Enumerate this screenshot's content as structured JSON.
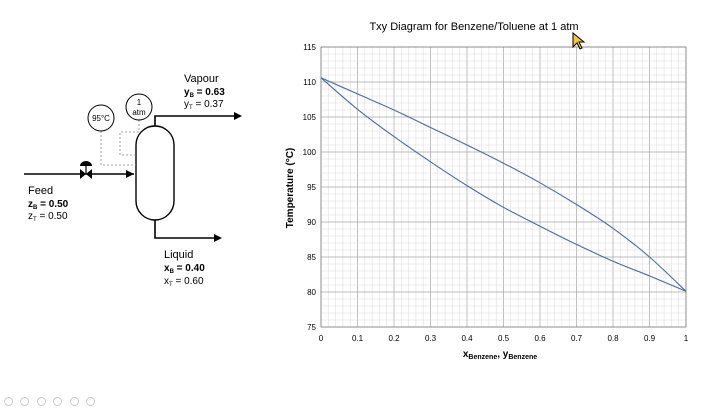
{
  "chart_data": {
    "type": "line",
    "title": "Txy Diagram for Benzene/Toluene at 1 atm",
    "xlabel_main": "x",
    "xlabel_sub1": "Benzene",
    "xlabel_sep": ", y",
    "xlabel_sub2": "Benzene",
    "ylabel": "Temperature (°C)",
    "xlim": [
      0,
      1
    ],
    "ylim": [
      75,
      115
    ],
    "x_ticks": [
      "0",
      "0.1",
      "0.2",
      "0.3",
      "0.4",
      "0.5",
      "0.6",
      "0.7",
      "0.8",
      "0.9",
      "1"
    ],
    "y_ticks": [
      "75",
      "80",
      "85",
      "90",
      "95",
      "100",
      "105",
      "110",
      "115"
    ],
    "grid": true,
    "series": [
      {
        "role": "bubble",
        "x": [
          0,
          0.1,
          0.2,
          0.3,
          0.4,
          0.5,
          0.6,
          0.7,
          0.8,
          0.9,
          1.0
        ],
        "y": [
          110.6,
          106.1,
          102.2,
          98.6,
          95.2,
          92.1,
          89.4,
          86.8,
          84.4,
          82.3,
          80.1
        ]
      },
      {
        "role": "dew",
        "x": [
          0,
          0.1,
          0.2,
          0.3,
          0.4,
          0.5,
          0.6,
          0.7,
          0.8,
          0.9,
          1.0
        ],
        "y": [
          110.6,
          108.3,
          106.0,
          103.5,
          101.0,
          98.4,
          95.6,
          92.5,
          89.1,
          85.0,
          80.1
        ]
      }
    ],
    "line_color": "#4a6aa8",
    "grid_color": "#d0d0d0",
    "grid_major_color": "#a6a6a6"
  },
  "flash": {
    "temperature_label": "95°C",
    "pressure_line1": "1",
    "pressure_line2": "atm",
    "vapour": {
      "title": "Vapour",
      "y_b_label": "y",
      "y_b_sub": "B",
      "y_b_value": " = 0.63",
      "y_t_label": "y",
      "y_t_sub": "T",
      "y_t_value": " = 0.37"
    },
    "feed": {
      "title": "Feed",
      "z_b_label": "z",
      "z_b_sub": "B",
      "z_b_value": " = 0.50",
      "z_t_label": "z",
      "z_t_sub": "T",
      "z_t_value": " = 0.50"
    },
    "liquid": {
      "title": "Liquid",
      "x_b_label": "x",
      "x_b_sub": "B",
      "x_b_value": " = 0.40",
      "x_t_label": "x",
      "x_t_sub": "T",
      "x_t_value": " = 0.60"
    }
  }
}
